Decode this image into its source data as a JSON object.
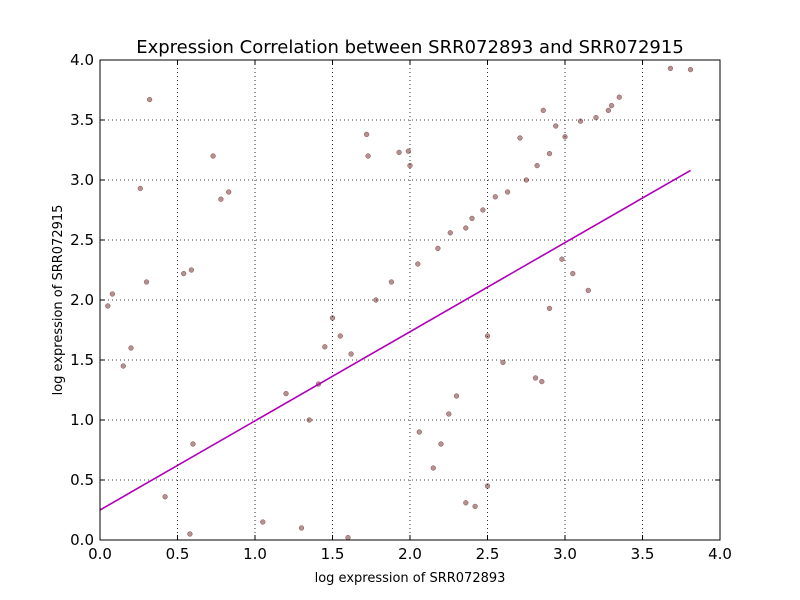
{
  "chart_data": {
    "type": "scatter",
    "title": "Expression Correlation between SRR072893 and SRR072915",
    "xlabel": "log expression of SRR072893",
    "ylabel": "log expression of SRR072915",
    "xlim": [
      0.0,
      4.0
    ],
    "ylim": [
      0.0,
      4.0
    ],
    "xticks": [
      "0.0",
      "0.5",
      "1.0",
      "1.5",
      "2.0",
      "2.5",
      "3.0",
      "3.5",
      "4.0"
    ],
    "yticks": [
      "0.0",
      "0.5",
      "1.0",
      "1.5",
      "2.0",
      "2.5",
      "3.0",
      "3.5",
      "4.0"
    ],
    "grid": true,
    "legend": "none",
    "colors": {
      "points": "#5a0a0a",
      "fit_line": "#b000b8"
    },
    "points": [
      [
        0.32,
        3.67
      ],
      [
        0.26,
        2.93
      ],
      [
        0.73,
        3.2
      ],
      [
        0.78,
        2.84
      ],
      [
        0.83,
        2.9
      ],
      [
        3.68,
        3.93
      ],
      [
        3.81,
        3.92
      ],
      [
        1.72,
        3.38
      ],
      [
        1.73,
        3.2
      ],
      [
        1.93,
        3.23
      ],
      [
        1.99,
        3.24
      ],
      [
        2.0,
        3.12
      ],
      [
        0.08,
        2.05
      ],
      [
        0.05,
        1.95
      ],
      [
        0.3,
        2.15
      ],
      [
        0.59,
        2.25
      ],
      [
        0.54,
        2.22
      ],
      [
        0.2,
        1.6
      ],
      [
        0.15,
        1.45
      ],
      [
        3.35,
        3.69
      ],
      [
        3.3,
        3.62
      ],
      [
        3.28,
        3.58
      ],
      [
        3.2,
        3.52
      ],
      [
        3.1,
        3.49
      ],
      [
        3.0,
        3.36
      ],
      [
        2.9,
        3.22
      ],
      [
        2.82,
        3.12
      ],
      [
        2.75,
        3.0
      ],
      [
        2.71,
        3.35
      ],
      [
        2.86,
        3.58
      ],
      [
        2.94,
        3.45
      ],
      [
        2.63,
        2.9
      ],
      [
        2.55,
        2.86
      ],
      [
        2.47,
        2.75
      ],
      [
        2.5,
        1.7
      ],
      [
        2.6,
        1.48
      ],
      [
        2.81,
        1.35
      ],
      [
        2.85,
        1.32
      ],
      [
        2.9,
        1.93
      ],
      [
        2.5,
        0.45
      ],
      [
        2.42,
        0.28
      ],
      [
        2.36,
        0.31
      ],
      [
        2.3,
        1.2
      ],
      [
        2.25,
        1.05
      ],
      [
        2.15,
        0.6
      ],
      [
        2.06,
        0.9
      ],
      [
        2.2,
        0.8
      ],
      [
        3.15,
        2.08
      ],
      [
        3.05,
        2.22
      ],
      [
        2.98,
        2.34
      ],
      [
        1.6,
        0.02
      ],
      [
        1.3,
        0.1
      ],
      [
        1.05,
        0.15
      ],
      [
        0.58,
        0.05
      ],
      [
        0.42,
        0.36
      ],
      [
        0.6,
        0.8
      ],
      [
        1.45,
        1.61
      ],
      [
        1.5,
        1.85
      ],
      [
        1.55,
        1.7
      ],
      [
        1.62,
        1.55
      ],
      [
        1.41,
        1.3
      ],
      [
        1.35,
        1.0
      ],
      [
        1.2,
        1.22
      ],
      [
        1.78,
        2.0
      ],
      [
        1.88,
        2.15
      ],
      [
        2.05,
        2.3
      ],
      [
        2.18,
        2.43
      ],
      [
        2.26,
        2.56
      ],
      [
        2.36,
        2.6
      ],
      [
        2.4,
        2.68
      ]
    ],
    "fit_line": {
      "x": [
        0.0,
        3.81
      ],
      "y": [
        0.25,
        3.08
      ]
    }
  }
}
